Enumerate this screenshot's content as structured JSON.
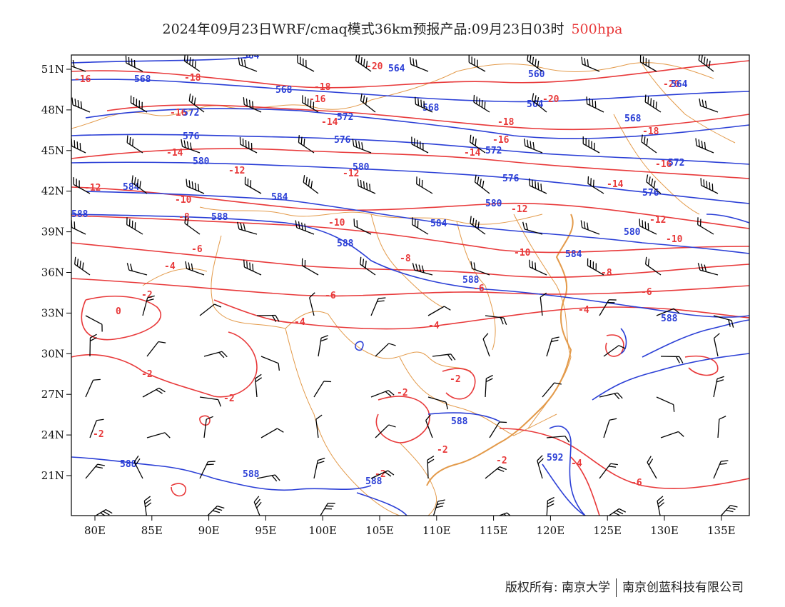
{
  "title": {
    "main": "2024年09月23日WRF/cmaq模式36km预报产品:09月23日03时",
    "level": "500hpa"
  },
  "colors": {
    "temperature": "#e8393a",
    "height": "#2b3fd6",
    "border": "#e39a4a",
    "wind": "#000000",
    "level_text": "#e8393a"
  },
  "axes": {
    "lon_labels": [
      "80E",
      "85E",
      "90E",
      "95E",
      "100E",
      "105E",
      "110E",
      "115E",
      "120E",
      "125E",
      "130E",
      "135E"
    ],
    "lat_labels": [
      "51N",
      "48N",
      "45N",
      "42N",
      "39N",
      "36N",
      "33N",
      "30N",
      "27N",
      "24N",
      "21N"
    ]
  },
  "contours": {
    "temperature_labels": [
      "-20",
      "-18",
      "-16",
      "-14",
      "-12",
      "-10",
      "-8",
      "-6",
      "-4",
      "-2",
      "0"
    ],
    "height_labels": [
      "564",
      "568",
      "572",
      "576",
      "580",
      "584",
      "588",
      "592"
    ]
  },
  "footer": {
    "left": "版权所有: 南京大学",
    "right": "南京创蓝科技有限公司"
  }
}
